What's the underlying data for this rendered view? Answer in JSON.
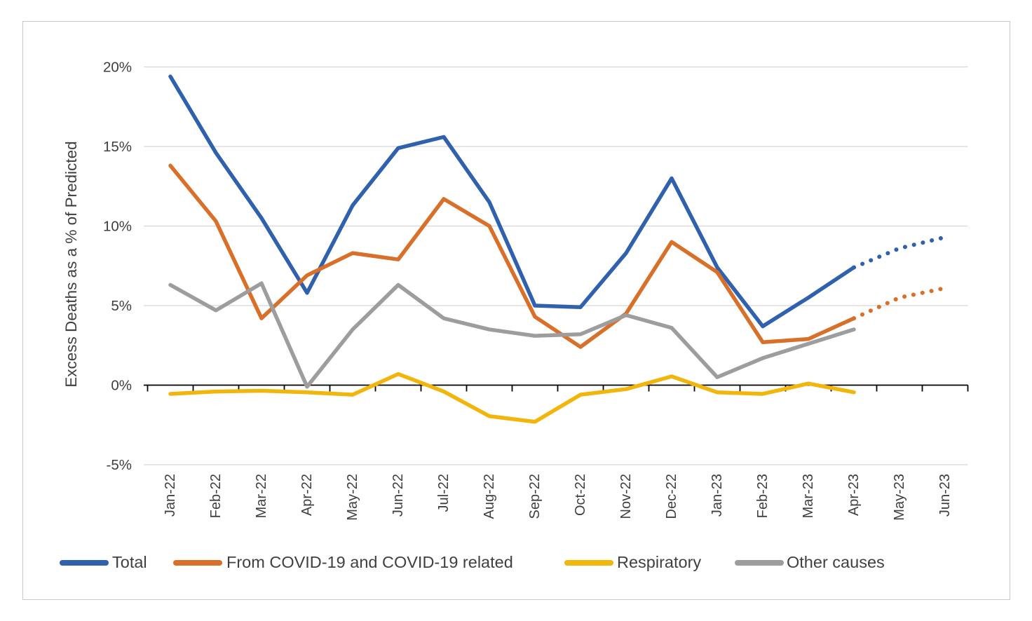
{
  "chart_data": {
    "type": "line",
    "title": "",
    "xlabel": "",
    "ylabel": "Excess Deaths as a % of Predicted",
    "ylim": [
      -5,
      20
    ],
    "ytick_values": [
      20,
      15,
      10,
      5,
      0,
      -5
    ],
    "ytick_labels": [
      "20%",
      "15%",
      "10%",
      "5%",
      "0%",
      "-5%"
    ],
    "grid": "horizontal gray gridlines at 20,15,10,5,-5; black category axis drawn at 0% with down tick marks",
    "legend_position": "bottom",
    "axis_color": "#000000",
    "gridline_color": "#d6d6d6",
    "tick_text_color": "#3f3f3f",
    "categories": [
      "Jan-22",
      "Feb-22",
      "Mar-22",
      "Apr-22",
      "May-22",
      "Jun-22",
      "Jul-22",
      "Aug-22",
      "Sep-22",
      "Oct-22",
      "Nov-22",
      "Dec-22",
      "Jan-23",
      "Feb-23",
      "Mar-23",
      "Apr-23",
      "May-23",
      "Jun-23"
    ],
    "series": [
      {
        "name": "Total",
        "color": "#3061AD",
        "style_note": "solid line through Apr-23, dotted forecast May-23 to Jun-23",
        "dotted_from_index": 15,
        "values": [
          19.4,
          14.6,
          10.5,
          5.8,
          11.3,
          14.9,
          15.6,
          11.5,
          5.0,
          4.9,
          8.3,
          13.0,
          7.4,
          3.7,
          5.5,
          7.4,
          8.6,
          9.3
        ]
      },
      {
        "name": "From COVID-19 and COVID-19 related",
        "color": "#D8702A",
        "style_note": "solid line through Apr-23, dotted forecast May-23 to Jun-23",
        "dotted_from_index": 15,
        "values": [
          13.8,
          10.3,
          4.2,
          6.9,
          8.3,
          7.9,
          11.7,
          10.0,
          4.3,
          2.4,
          4.5,
          9.0,
          7.1,
          2.7,
          2.9,
          4.2,
          5.5,
          6.1
        ]
      },
      {
        "name": "Respiratory",
        "color": "#F2B50B",
        "style_note": "solid line, ends at Apr-23",
        "dotted_from_index": null,
        "values": [
          -0.55,
          -0.4,
          -0.35,
          -0.45,
          -0.6,
          0.7,
          -0.4,
          -1.95,
          -2.3,
          -0.6,
          -0.25,
          0.55,
          -0.45,
          -0.55,
          0.1,
          -0.45
        ]
      },
      {
        "name": "Other causes",
        "color": "#9D9D9D",
        "style_note": "solid line, ends at Apr-23",
        "dotted_from_index": null,
        "values": [
          6.3,
          4.7,
          6.4,
          -0.1,
          3.5,
          6.3,
          4.2,
          3.5,
          3.1,
          3.2,
          4.4,
          3.6,
          0.5,
          1.7,
          2.6,
          3.5
        ]
      }
    ]
  }
}
